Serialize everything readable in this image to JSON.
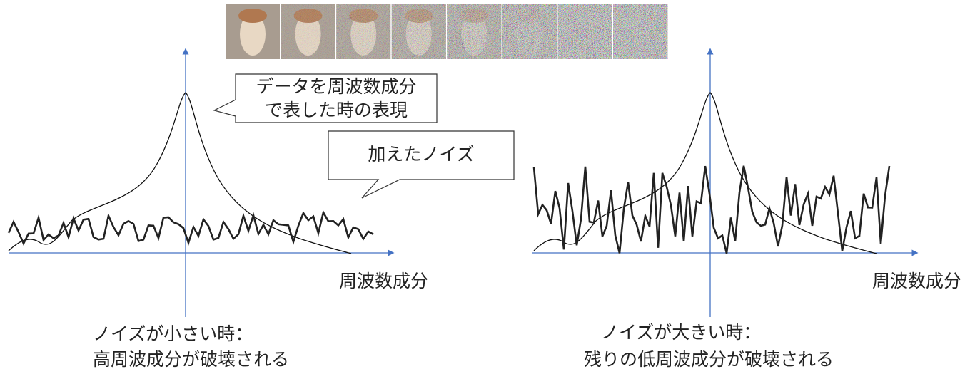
{
  "callouts": {
    "representation": [
      "データを周波数成分",
      "で表した時の表現"
    ],
    "noise": "加えたノイズ"
  },
  "panels": [
    {
      "axis_label": "周波数成分",
      "caption": [
        "ノイズが小さい時：",
        "高周波成分が破壊される"
      ]
    },
    {
      "axis_label": "周波数成分",
      "caption": [
        "ノイズが大きい時：",
        "残りの低周波成分が破壊される"
      ]
    }
  ]
}
